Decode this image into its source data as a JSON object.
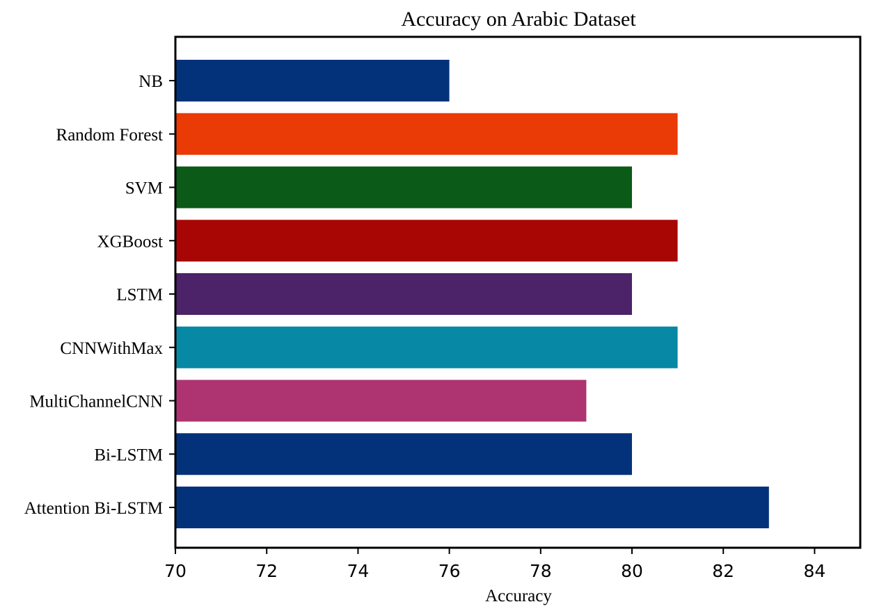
{
  "chart_data": {
    "type": "bar",
    "orientation": "horizontal",
    "title": "Accuracy on Arabic Dataset",
    "xlabel": "Accuracy",
    "ylabel": "",
    "xlim": [
      70,
      85
    ],
    "xticks": [
      "70",
      "72",
      "74",
      "76",
      "78",
      "80",
      "82",
      "84"
    ],
    "grid": false,
    "categories": [
      "NB",
      "Random Forest",
      "SVM",
      "XGBoost",
      "LSTM",
      "CNNWithMax",
      "MultiChannelCNN",
      "Bi-LSTM",
      "Attention Bi-LSTM"
    ],
    "values": [
      76,
      81,
      80,
      81,
      80,
      81,
      79,
      80,
      83
    ],
    "colors": [
      "#04327a",
      "#ea3a06",
      "#0b5a18",
      "#a80605",
      "#4c2268",
      "#0788a4",
      "#ad3470",
      "#04327a",
      "#04327a"
    ]
  }
}
